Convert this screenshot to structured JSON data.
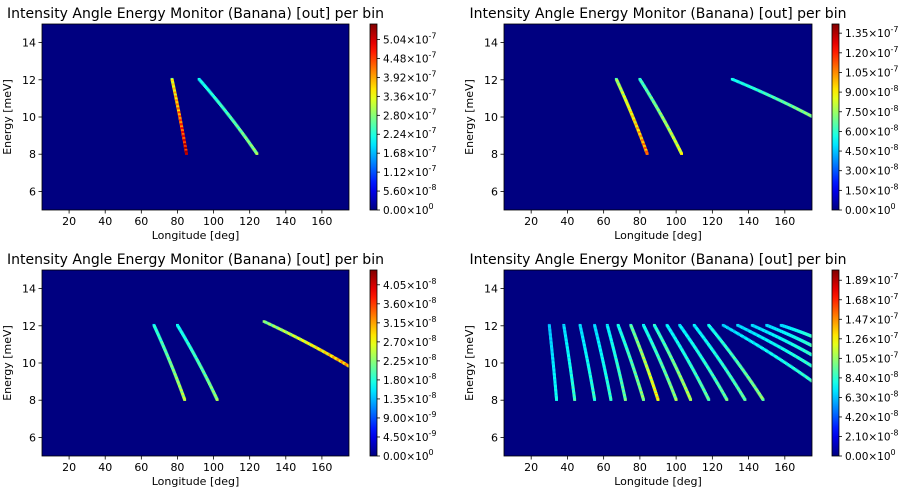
{
  "chart_data": [
    {
      "type": "heatmap",
      "title": "Intensity Angle Energy Monitor (Banana) [out] per bin",
      "xlabel": "Longitude [deg]",
      "ylabel": "Energy [meV]",
      "xlim": [
        5,
        175
      ],
      "ylim": [
        5,
        15
      ],
      "xticks": [
        "20",
        "40",
        "60",
        "80",
        "100",
        "120",
        "140",
        "160"
      ],
      "yticks": [
        "6",
        "8",
        "10",
        "12",
        "14"
      ],
      "colorbar": {
        "ticks": [
          "0.00 × 10^0",
          "5.60 × 10^-8",
          "1.12 × 10^-7",
          "1.68 × 10^-7",
          "2.24 × 10^-7",
          "2.80 × 10^-7",
          "3.36 × 10^-7",
          "3.92 × 10^-7",
          "4.48 × 10^-7",
          "5.04 × 10^-7"
        ],
        "max": 5.5e-07,
        "colormap": "jet"
      },
      "curves": [
        {
          "from": [
            77,
            12.0
          ],
          "to": [
            85,
            8.0
          ],
          "intensity": 0.85
        },
        {
          "from": [
            92,
            12.0
          ],
          "to": [
            124,
            8.0
          ],
          "intensity": 0.35
        }
      ]
    },
    {
      "type": "heatmap",
      "title": "Intensity Angle Energy Monitor (Banana) [out] per bin",
      "xlabel": "Longitude [deg]",
      "ylabel": "Energy [meV]",
      "xlim": [
        5,
        175
      ],
      "ylim": [
        5,
        15
      ],
      "xticks": [
        "20",
        "40",
        "60",
        "80",
        "100",
        "120",
        "140",
        "160"
      ],
      "yticks": [
        "6",
        "8",
        "10",
        "12",
        "14"
      ],
      "colorbar": {
        "ticks": [
          "0.00 × 10^0",
          "1.50 × 10^-8",
          "3.00 × 10^-8",
          "4.50 × 10^-8",
          "6.00 × 10^-8",
          "7.50 × 10^-8",
          "9.00 × 10^-8",
          "1.05 × 10^-7",
          "1.20 × 10^-7",
          "1.35 × 10^-7"
        ],
        "max": 1.42e-07,
        "colormap": "jet"
      },
      "curves": [
        {
          "from": [
            67,
            12.0
          ],
          "to": [
            84,
            8.0
          ],
          "intensity": 0.65
        },
        {
          "from": [
            80,
            12.0
          ],
          "to": [
            103,
            8.0
          ],
          "intensity": 0.45
        },
        {
          "from": [
            131,
            12.0
          ],
          "to": [
            175,
            10.0
          ],
          "intensity": 0.35
        }
      ]
    },
    {
      "type": "heatmap",
      "title": "Intensity Angle Energy Monitor (Banana) [out] per bin",
      "xlabel": "Longitude [deg]",
      "ylabel": "Energy [meV]",
      "xlim": [
        5,
        175
      ],
      "ylim": [
        5,
        15
      ],
      "xticks": [
        "20",
        "40",
        "60",
        "80",
        "100",
        "120",
        "140",
        "160"
      ],
      "yticks": [
        "6",
        "8",
        "10",
        "12",
        "14"
      ],
      "colorbar": {
        "ticks": [
          "0.00 × 10^0",
          "4.50 × 10^-9",
          "9.00 × 10^-9",
          "1.35 × 10^-8",
          "1.80 × 10^-8",
          "2.25 × 10^-8",
          "2.70 × 10^-8",
          "3.15 × 10^-8",
          "3.60 × 10^-8",
          "4.05 × 10^-8"
        ],
        "max": 4.4e-08,
        "colormap": "jet"
      },
      "curves": [
        {
          "from": [
            67,
            12.0
          ],
          "to": [
            84,
            8.0
          ],
          "intensity": 0.4
        },
        {
          "from": [
            80,
            12.0
          ],
          "to": [
            102,
            8.0
          ],
          "intensity": 0.35
        },
        {
          "from": [
            128,
            12.2
          ],
          "to": [
            175,
            9.8
          ],
          "intensity": 0.6
        }
      ]
    },
    {
      "type": "heatmap",
      "title": "Intensity Angle Energy Monitor (Banana) [out] per bin",
      "xlabel": "Longitude [deg]",
      "ylabel": "Energy [meV]",
      "xlim": [
        5,
        175
      ],
      "ylim": [
        5,
        15
      ],
      "xticks": [
        "20",
        "40",
        "60",
        "80",
        "100",
        "120",
        "140",
        "160"
      ],
      "yticks": [
        "6",
        "8",
        "10",
        "12",
        "14"
      ],
      "colorbar": {
        "ticks": [
          "0.00 × 10^0",
          "2.10 × 10^-8",
          "4.20 × 10^-8",
          "6.30 × 10^-8",
          "8.40 × 10^-8",
          "1.05 × 10^-7",
          "1.26 × 10^-7",
          "1.47 × 10^-7",
          "1.68 × 10^-7",
          "1.89 × 10^-7"
        ],
        "max": 2e-07,
        "colormap": "jet"
      },
      "curves": [
        {
          "from": [
            30,
            12.0
          ],
          "to": [
            34,
            8.0
          ],
          "intensity": 0.2
        },
        {
          "from": [
            38,
            12.0
          ],
          "to": [
            44,
            8.0
          ],
          "intensity": 0.25
        },
        {
          "from": [
            47,
            12.0
          ],
          "to": [
            55,
            8.0
          ],
          "intensity": 0.25
        },
        {
          "from": [
            55,
            12.0
          ],
          "to": [
            64,
            8.0
          ],
          "intensity": 0.25
        },
        {
          "from": [
            62,
            12.0
          ],
          "to": [
            72,
            8.0
          ],
          "intensity": 0.3
        },
        {
          "from": [
            68,
            12.0
          ],
          "to": [
            82,
            8.0
          ],
          "intensity": 0.35
        },
        {
          "from": [
            75,
            12.0
          ],
          "to": [
            90,
            8.0
          ],
          "intensity": 0.5
        },
        {
          "from": [
            82,
            12.0
          ],
          "to": [
            100,
            8.0
          ],
          "intensity": 0.35
        },
        {
          "from": [
            88,
            12.0
          ],
          "to": [
            108,
            8.0
          ],
          "intensity": 0.4
        },
        {
          "from": [
            95,
            12.0
          ],
          "to": [
            118,
            8.0
          ],
          "intensity": 0.3
        },
        {
          "from": [
            102,
            12.0
          ],
          "to": [
            128,
            8.0
          ],
          "intensity": 0.3
        },
        {
          "from": [
            110,
            12.0
          ],
          "to": [
            138,
            8.0
          ],
          "intensity": 0.3
        },
        {
          "from": [
            118,
            12.0
          ],
          "to": [
            148,
            8.0
          ],
          "intensity": 0.35
        },
        {
          "from": [
            126,
            12.0
          ],
          "to": [
            175,
            9.0
          ],
          "intensity": 0.25
        },
        {
          "from": [
            134,
            12.0
          ],
          "to": [
            175,
            9.8
          ],
          "intensity": 0.25
        },
        {
          "from": [
            142,
            12.0
          ],
          "to": [
            175,
            10.4
          ],
          "intensity": 0.25
        },
        {
          "from": [
            150,
            12.0
          ],
          "to": [
            175,
            10.9
          ],
          "intensity": 0.25
        },
        {
          "from": [
            158,
            12.0
          ],
          "to": [
            175,
            11.4
          ],
          "intensity": 0.25
        }
      ]
    }
  ]
}
